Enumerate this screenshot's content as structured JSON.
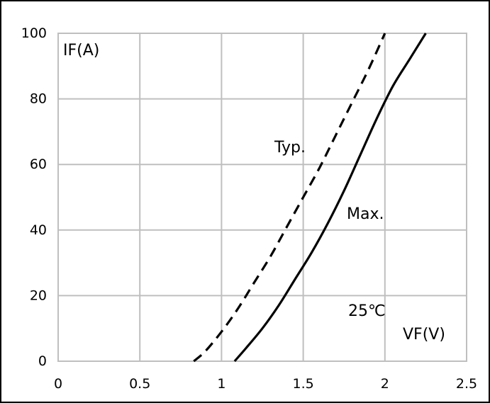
{
  "chart_data": {
    "type": "line",
    "title": "",
    "xlabel": "VF(V)",
    "ylabel": "IF(A)",
    "xlim": [
      0,
      2.5
    ],
    "ylim": [
      0,
      100
    ],
    "x_ticks": [
      "0",
      "0.5",
      "1",
      "1.5",
      "2",
      "2.5"
    ],
    "y_ticks": [
      "0",
      "20",
      "40",
      "60",
      "80",
      "100"
    ],
    "grid": true,
    "legend": "none",
    "series": [
      {
        "name": "Typ.",
        "style": "dashed",
        "color": "#000000",
        "x": [
          0.83,
          0.9,
          1.0,
          1.1,
          1.2,
          1.3,
          1.4,
          1.5,
          1.6,
          1.7,
          1.8,
          1.9,
          2.0
        ],
        "y": [
          0,
          3,
          9,
          16,
          24,
          32,
          41,
          50,
          59,
          69,
          79,
          89,
          100
        ]
      },
      {
        "name": "Max.",
        "style": "solid",
        "color": "#000000",
        "x": [
          1.08,
          1.15,
          1.25,
          1.35,
          1.45,
          1.55,
          1.65,
          1.75,
          1.85,
          1.95,
          2.05,
          2.15,
          2.25
        ],
        "y": [
          0,
          4,
          10,
          17,
          25,
          33,
          42,
          52,
          63,
          74,
          84,
          92,
          100
        ]
      }
    ],
    "annotations": [
      "Typ.",
      "Max.",
      "25℃"
    ]
  }
}
